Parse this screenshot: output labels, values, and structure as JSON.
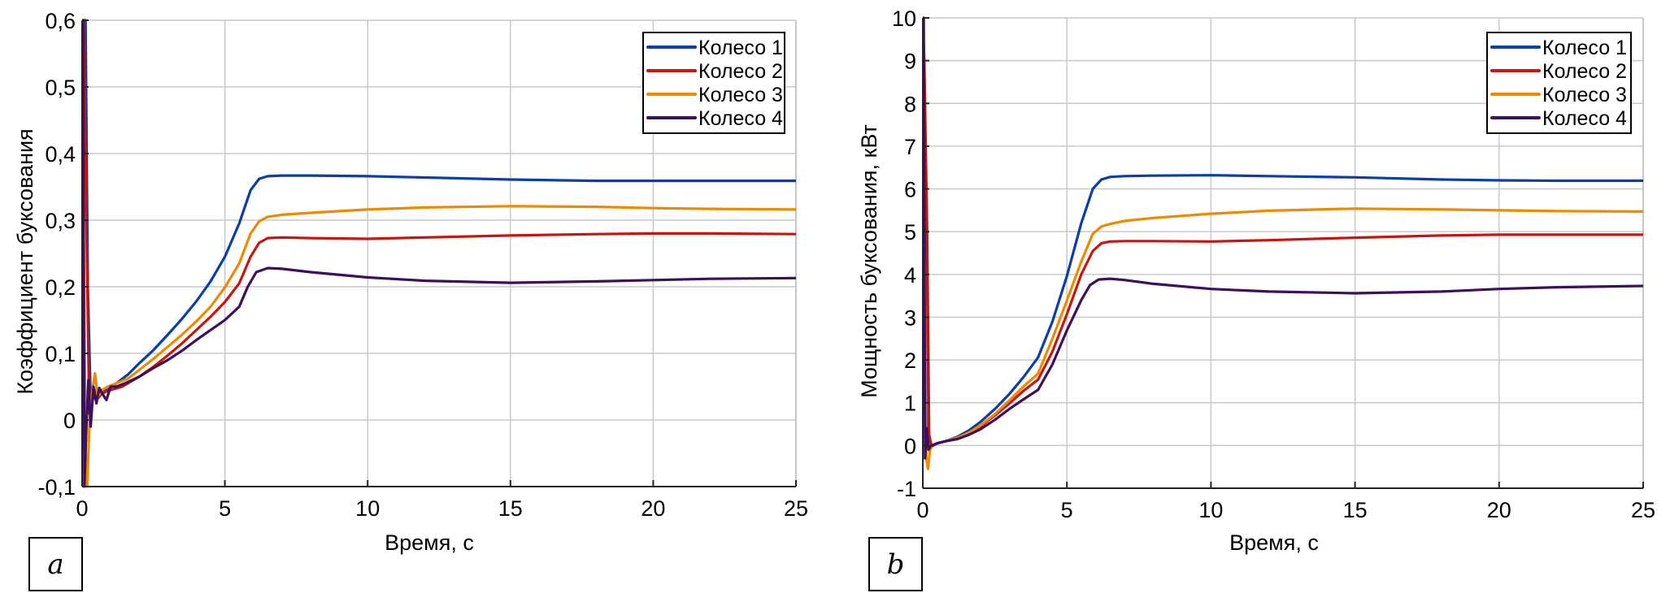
{
  "chart_data": [
    {
      "type": "line",
      "id": "a",
      "panel_label": "a",
      "title": "",
      "xlabel": "Время, с",
      "ylabel": "Коэффициент буксования",
      "xlim": [
        0,
        25
      ],
      "ylim": [
        -0.1,
        0.6
      ],
      "xticks": [
        0,
        5,
        10,
        15,
        20,
        25
      ],
      "xtick_labels": [
        "0",
        "5",
        "10",
        "15",
        "20",
        "25"
      ],
      "yticks": [
        -0.1,
        0,
        0.1,
        0.2,
        0.3,
        0.4,
        0.5,
        0.6
      ],
      "ytick_labels": [
        "-0,1",
        "0",
        "0,1",
        "0,2",
        "0,3",
        "0,4",
        "0,5",
        "0,6"
      ],
      "grid": true,
      "legend_position": "top-right",
      "series": [
        {
          "name": "Колесо 1",
          "color": "#0a3fa6",
          "x": [
            0,
            0.02,
            0.12,
            0.2,
            0.3,
            0.5,
            0.8,
            1.2,
            1.6,
            2,
            2.5,
            3,
            3.5,
            4,
            4.5,
            5,
            5.5,
            5.9,
            6.2,
            6.5,
            7,
            8,
            10,
            12,
            15,
            18,
            20,
            22,
            25
          ],
          "y": [
            0.6,
            0.6,
            0.6,
            0.2,
            0.03,
            0.045,
            0.045,
            0.055,
            0.068,
            0.085,
            0.105,
            0.128,
            0.152,
            0.178,
            0.208,
            0.245,
            0.295,
            0.345,
            0.362,
            0.366,
            0.367,
            0.367,
            0.366,
            0.364,
            0.361,
            0.359,
            0.359,
            0.359,
            0.359
          ]
        },
        {
          "name": "Колесо 2",
          "color": "#c8150f",
          "x": [
            0,
            0.05,
            0.15,
            0.25,
            0.35,
            0.5,
            0.7,
            1.0,
            1.4,
            2,
            2.5,
            3,
            3.5,
            4,
            4.5,
            5,
            5.5,
            5.9,
            6.2,
            6.5,
            7,
            8,
            10,
            12,
            15,
            18,
            20,
            22,
            25
          ],
          "y": [
            0.6,
            0.6,
            0.3,
            0.01,
            0.035,
            0.03,
            0.04,
            0.045,
            0.05,
            0.065,
            0.08,
            0.097,
            0.115,
            0.135,
            0.155,
            0.177,
            0.205,
            0.245,
            0.266,
            0.273,
            0.274,
            0.273,
            0.272,
            0.274,
            0.277,
            0.279,
            0.28,
            0.28,
            0.279
          ]
        },
        {
          "name": "Колесо 3",
          "color": "#ec8a00",
          "x": [
            0,
            0.05,
            0.12,
            0.18,
            0.25,
            0.35,
            0.45,
            0.55,
            0.7,
            0.9,
            1.2,
            1.6,
            2,
            2.5,
            3,
            3.5,
            4,
            4.5,
            5,
            5.5,
            5.9,
            6.2,
            6.5,
            7,
            8,
            10,
            12,
            15,
            18,
            20,
            22,
            25
          ],
          "y": [
            0.6,
            0.3,
            -0.05,
            -0.1,
            -0.01,
            0.04,
            0.07,
            0.035,
            0.045,
            0.05,
            0.055,
            0.062,
            0.075,
            0.092,
            0.11,
            0.128,
            0.148,
            0.17,
            0.199,
            0.235,
            0.28,
            0.298,
            0.305,
            0.308,
            0.311,
            0.316,
            0.319,
            0.321,
            0.32,
            0.318,
            0.317,
            0.316
          ]
        },
        {
          "name": "Колесо 4",
          "color": "#3d0f5c",
          "x": [
            0,
            0.03,
            0.08,
            0.14,
            0.22,
            0.3,
            0.4,
            0.5,
            0.6,
            0.7,
            0.85,
            1.0,
            1.2,
            1.5,
            2,
            2.5,
            3,
            3.5,
            4,
            4.5,
            5,
            5.5,
            5.8,
            6.1,
            6.5,
            7,
            8,
            10,
            12,
            15,
            18,
            20,
            22,
            25
          ],
          "y": [
            0.6,
            0.6,
            -0.1,
            -0.02,
            0.06,
            -0.01,
            0.05,
            0.025,
            0.048,
            0.04,
            0.03,
            0.05,
            0.05,
            0.055,
            0.065,
            0.078,
            0.09,
            0.104,
            0.12,
            0.135,
            0.15,
            0.17,
            0.2,
            0.222,
            0.228,
            0.227,
            0.222,
            0.214,
            0.209,
            0.206,
            0.208,
            0.21,
            0.212,
            0.213
          ]
        }
      ]
    },
    {
      "type": "line",
      "id": "b",
      "panel_label": "b",
      "title": "",
      "xlabel": "Время, с",
      "ylabel": "Мощность буксования, кВт",
      "xlim": [
        0,
        25
      ],
      "ylim": [
        -1,
        10
      ],
      "xticks": [
        0,
        5,
        10,
        15,
        20,
        25
      ],
      "xtick_labels": [
        "0",
        "5",
        "10",
        "15",
        "20",
        "25"
      ],
      "yticks": [
        -1,
        0,
        1,
        2,
        3,
        4,
        5,
        6,
        7,
        8,
        9,
        10
      ],
      "ytick_labels": [
        "-1",
        "0",
        "1",
        "2",
        "3",
        "4",
        "5",
        "6",
        "7",
        "8",
        "9",
        "10"
      ],
      "grid": true,
      "legend_position": "top-right",
      "series": [
        {
          "name": "Колесо 1",
          "color": "#0a3fa6",
          "x": [
            0,
            0.05,
            0.12,
            0.2,
            0.3,
            0.5,
            0.8,
            1.2,
            1.6,
            2,
            2.5,
            3,
            3.5,
            4,
            4.5,
            5,
            5.5,
            5.9,
            6.2,
            6.5,
            7,
            8,
            10,
            12,
            15,
            18,
            20,
            22,
            25
          ],
          "y": [
            10,
            6.0,
            6.0,
            0.3,
            0.0,
            0.05,
            0.1,
            0.2,
            0.35,
            0.55,
            0.85,
            1.2,
            1.6,
            2.06,
            2.9,
            3.96,
            5.2,
            6.0,
            6.22,
            6.28,
            6.3,
            6.31,
            6.32,
            6.3,
            6.27,
            6.22,
            6.2,
            6.19,
            6.19
          ]
        },
        {
          "name": "Колесо 2",
          "color": "#c8150f",
          "x": [
            0,
            0.05,
            0.15,
            0.22,
            0.3,
            0.5,
            0.8,
            1.2,
            1.6,
            2,
            2.5,
            3,
            3.5,
            4,
            4.5,
            5,
            5.5,
            5.9,
            6.2,
            6.5,
            7,
            8,
            10,
            12,
            15,
            18,
            20,
            22,
            25
          ],
          "y": [
            10,
            9,
            5.0,
            0.2,
            0.0,
            0.05,
            0.1,
            0.18,
            0.3,
            0.45,
            0.7,
            0.98,
            1.28,
            1.54,
            2.2,
            3.07,
            4.0,
            4.55,
            4.73,
            4.77,
            4.78,
            4.78,
            4.77,
            4.8,
            4.86,
            4.91,
            4.93,
            4.93,
            4.93
          ]
        },
        {
          "name": "Колесо 3",
          "color": "#ec8a00",
          "x": [
            0,
            0.05,
            0.12,
            0.18,
            0.25,
            0.35,
            0.5,
            0.8,
            1.2,
            1.6,
            2,
            2.5,
            3,
            3.5,
            4,
            4.5,
            5,
            5.5,
            5.9,
            6.2,
            6.5,
            7,
            8,
            10,
            12,
            15,
            18,
            20,
            22,
            25
          ],
          "y": [
            10,
            5,
            -0.3,
            -0.55,
            -0.1,
            0.0,
            0.05,
            0.1,
            0.18,
            0.3,
            0.47,
            0.73,
            1.05,
            1.38,
            1.68,
            2.5,
            3.39,
            4.3,
            4.95,
            5.12,
            5.18,
            5.25,
            5.32,
            5.42,
            5.49,
            5.54,
            5.52,
            5.5,
            5.48,
            5.47
          ]
        },
        {
          "name": "Колесо 4",
          "color": "#3d0f5c",
          "x": [
            0,
            0.03,
            0.08,
            0.14,
            0.2,
            0.28,
            0.35,
            0.5,
            0.8,
            1.2,
            1.6,
            2,
            2.5,
            3,
            3.5,
            4,
            4.5,
            5,
            5.5,
            5.8,
            6.1,
            6.5,
            7,
            8,
            10,
            12,
            15,
            18,
            20,
            22,
            25
          ],
          "y": [
            10,
            10,
            -0.3,
            0.4,
            -0.1,
            0.0,
            0.0,
            0.05,
            0.1,
            0.15,
            0.25,
            0.38,
            0.6,
            0.85,
            1.08,
            1.3,
            1.9,
            2.69,
            3.4,
            3.75,
            3.88,
            3.9,
            3.87,
            3.78,
            3.66,
            3.6,
            3.56,
            3.6,
            3.66,
            3.7,
            3.73
          ]
        }
      ]
    }
  ]
}
